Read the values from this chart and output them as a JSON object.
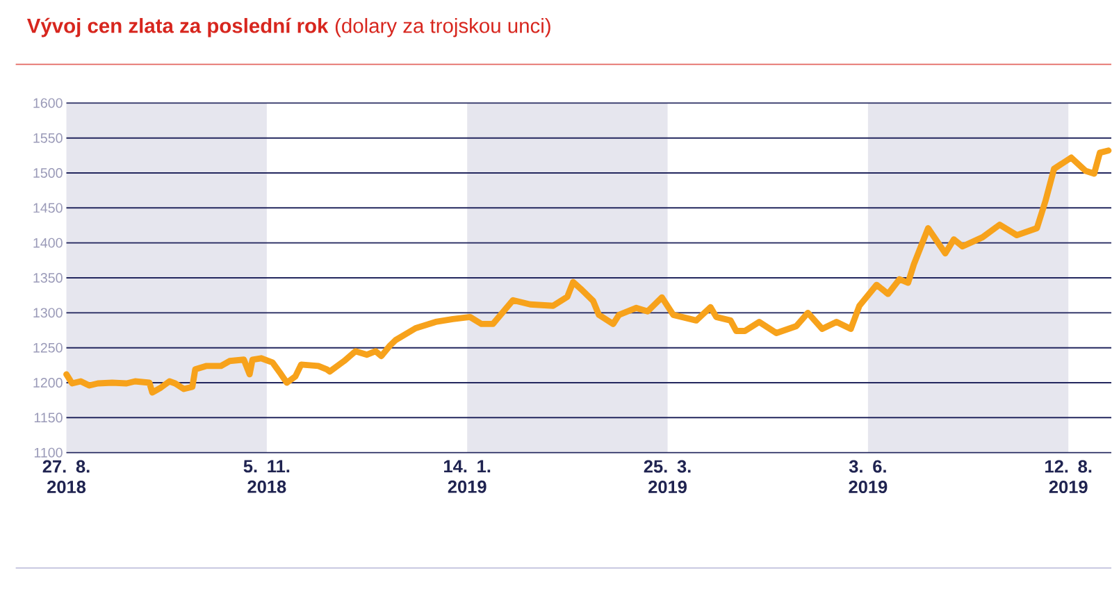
{
  "chart_data": {
    "type": "line",
    "title": "Vývoj cen zlata za poslední rok",
    "subtitle": "(dolary za trojskou unci)",
    "x": [
      "2018-08-27",
      "2018-08-29",
      "2018-09-01",
      "2018-09-04",
      "2018-09-07",
      "2018-09-12",
      "2018-09-17",
      "2018-09-20",
      "2018-09-25",
      "2018-09-26",
      "2018-09-29",
      "2018-10-02",
      "2018-10-04",
      "2018-10-07",
      "2018-10-10",
      "2018-10-11",
      "2018-10-15",
      "2018-10-20",
      "2018-10-23",
      "2018-10-28",
      "2018-10-30",
      "2018-10-31",
      "2018-11-03",
      "2018-11-07",
      "2018-11-10",
      "2018-11-12",
      "2018-11-15",
      "2018-11-17",
      "2018-11-23",
      "2018-11-26",
      "2018-11-27",
      "2018-12-02",
      "2018-12-06",
      "2018-12-10",
      "2018-12-13",
      "2018-12-15",
      "2018-12-18",
      "2018-12-20",
      "2018-12-27",
      "2019-01-03",
      "2019-01-09",
      "2019-01-15",
      "2019-01-19",
      "2019-01-23",
      "2019-01-30",
      "2019-02-05",
      "2019-02-13",
      "2019-02-18",
      "2019-02-20",
      "2019-02-23",
      "2019-02-27",
      "2019-03-01",
      "2019-03-06",
      "2019-03-08",
      "2019-03-14",
      "2019-03-18",
      "2019-03-23",
      "2019-03-27",
      "2019-04-04",
      "2019-04-09",
      "2019-04-11",
      "2019-04-16",
      "2019-04-18",
      "2019-04-21",
      "2019-04-26",
      "2019-05-02",
      "2019-05-09",
      "2019-05-13",
      "2019-05-18",
      "2019-05-23",
      "2019-05-28",
      "2019-05-31",
      "2019-06-06",
      "2019-06-10",
      "2019-06-14",
      "2019-06-17",
      "2019-06-19",
      "2019-06-24",
      "2019-06-30",
      "2019-07-03",
      "2019-07-06",
      "2019-07-13",
      "2019-07-19",
      "2019-07-25",
      "2019-08-01",
      "2019-08-04",
      "2019-08-07",
      "2019-08-13",
      "2019-08-18",
      "2019-08-21",
      "2019-08-23",
      "2019-08-26"
    ],
    "series": [
      {
        "color": "#f7a21b",
        "values": [
          1212,
          1199,
          1202,
          1196,
          1199,
          1200,
          1199,
          1202,
          1200,
          1186,
          1193,
          1202,
          1199,
          1191,
          1194,
          1219,
          1224,
          1224,
          1231,
          1233,
          1212,
          1233,
          1235,
          1229,
          1212,
          1200,
          1209,
          1226,
          1224,
          1219,
          1216,
          1231,
          1245,
          1240,
          1245,
          1238,
          1253,
          1261,
          1278,
          1287,
          1291,
          1294,
          1284,
          1284,
          1318,
          1312,
          1310,
          1323,
          1344,
          1333,
          1317,
          1297,
          1284,
          1297,
          1307,
          1302,
          1322,
          1297,
          1289,
          1308,
          1294,
          1289,
          1274,
          1274,
          1287,
          1271,
          1281,
          1300,
          1277,
          1287,
          1277,
          1310,
          1340,
          1327,
          1348,
          1343,
          1369,
          1421,
          1385,
          1405,
          1395,
          1408,
          1426,
          1411,
          1421,
          1460,
          1506,
          1522,
          1503,
          1499,
          1529,
          1532
        ]
      }
    ],
    "xlim": [
      "2018-08-27",
      "2019-08-27"
    ],
    "xticks": [
      {
        "value": "2018-08-27",
        "label": "27. 8. 2018"
      },
      {
        "value": "2018-11-05",
        "label": "5. 11. 2018"
      },
      {
        "value": "2019-01-14",
        "label": "14. 1. 2019"
      },
      {
        "value": "2019-03-25",
        "label": "25. 3. 2019"
      },
      {
        "value": "2019-06-03",
        "label": "3. 6. 2019"
      },
      {
        "value": "2019-08-12",
        "label": "12. 8. 2019"
      }
    ],
    "ylim": [
      1100,
      1600
    ],
    "yticks": [
      1100,
      1150,
      1200,
      1250,
      1300,
      1350,
      1400,
      1450,
      1500,
      1550,
      1600
    ],
    "grid": "y",
    "bands": [
      {
        "axis": "x",
        "from": "2018-08-27",
        "to": "2018-11-05",
        "color": "#e6e6ee"
      },
      {
        "axis": "x",
        "from": "2019-01-14",
        "to": "2019-03-25",
        "color": "#e6e6ee"
      },
      {
        "axis": "x",
        "from": "2019-06-03",
        "to": "2019-08-12",
        "color": "#e6e6ee"
      }
    ]
  }
}
